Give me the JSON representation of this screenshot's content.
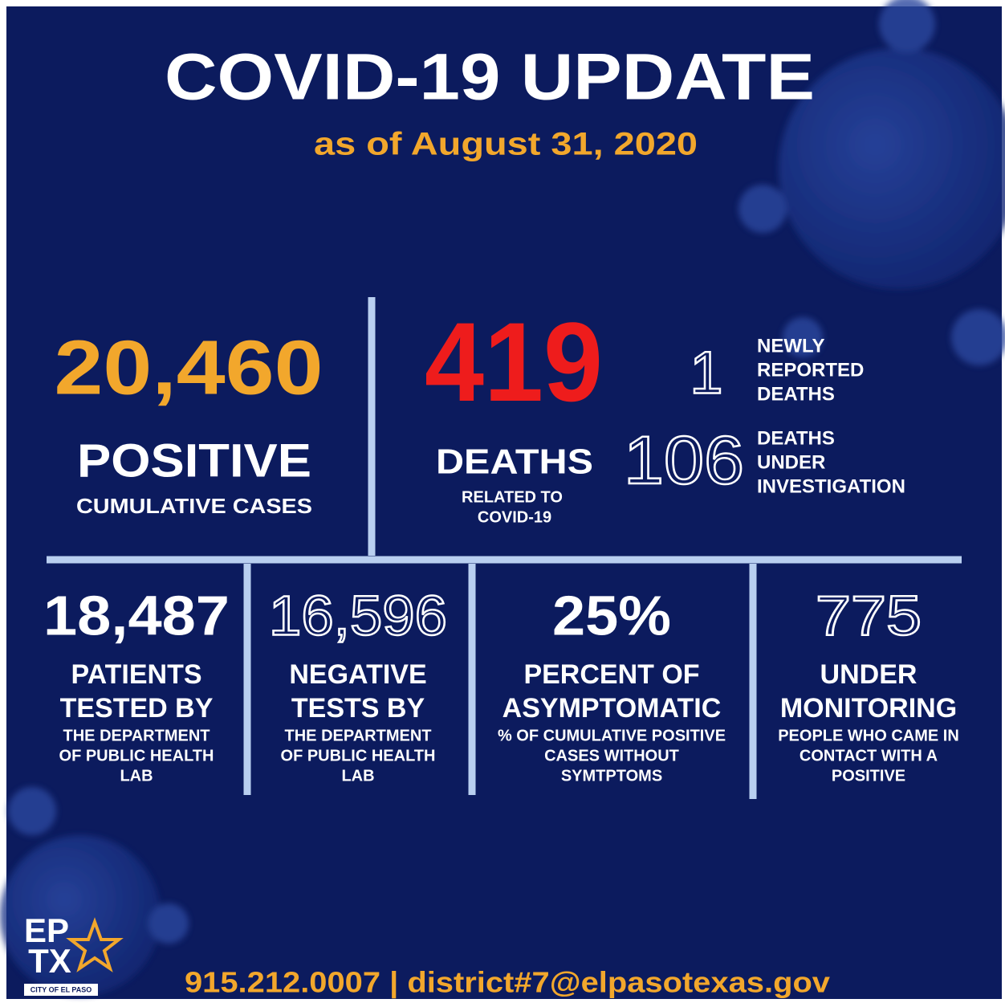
{
  "header": {
    "title": "COVID-19 UPDATE",
    "subtitle": "as of August 31, 2020"
  },
  "positive": {
    "value": "20,460",
    "label": "POSITIVE",
    "sublabel": "CUMULATIVE CASES"
  },
  "deaths": {
    "value": "419",
    "label": "DEATHS",
    "sublabel": [
      "RELATED TO",
      "COVID-19"
    ]
  },
  "new_deaths": {
    "value": "1",
    "label": [
      "NEWLY",
      "REPORTED",
      "DEATHS"
    ]
  },
  "under_investigation": {
    "value": "106",
    "label": [
      "DEATHS",
      "UNDER",
      "INVESTIGATION"
    ]
  },
  "panels": [
    {
      "value": "18,487",
      "title": [
        "PATIENTS",
        "TESTED BY"
      ],
      "description": [
        "THE DEPARTMENT",
        "OF PUBLIC HEALTH",
        "LAB"
      ]
    },
    {
      "value": "16,596",
      "title": [
        "NEGATIVE",
        "TESTS BY"
      ],
      "description": [
        "THE DEPARTMENT",
        "OF PUBLIC HEALTH",
        "LAB"
      ]
    },
    {
      "value": "25%",
      "title": [
        "PERCENT OF",
        "ASYMPTOMATIC"
      ],
      "description": [
        "% OF CUMULATIVE POSITIVE",
        "CASES WITHOUT",
        "SYMTPTOMS"
      ]
    },
    {
      "value": "775",
      "title": [
        "UNDER",
        "MONITORING"
      ],
      "description": [
        "PEOPLE WHO CAME IN",
        "CONTACT WITH A",
        "POSITIVE"
      ]
    }
  ],
  "logo": {
    "line1": "EP",
    "line2": "TX",
    "caption": "CITY OF EL PASO"
  },
  "footer": "915.212.0007 | district#7@elpasotexas.gov"
}
